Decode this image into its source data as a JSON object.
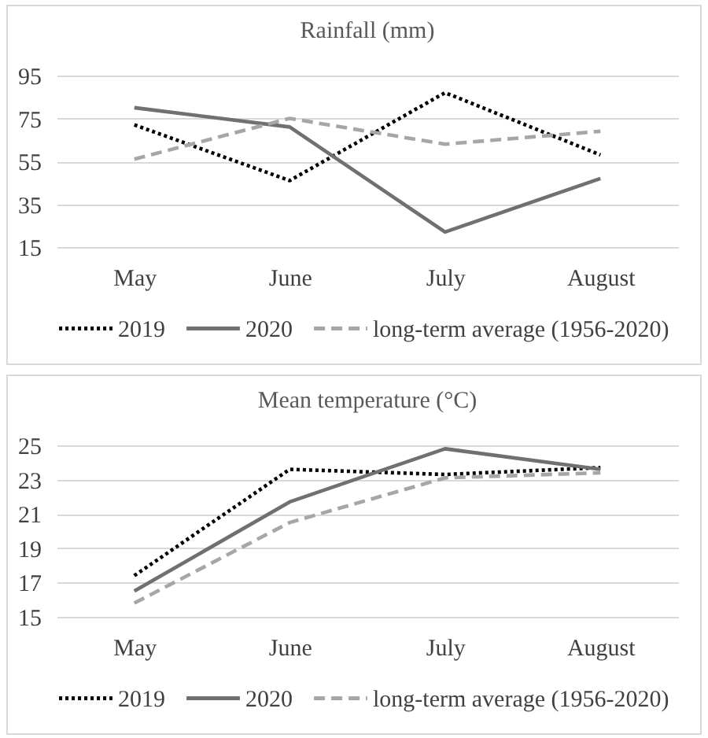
{
  "chart_data": [
    {
      "type": "line",
      "title": "Rainfall (mm)",
      "categories": [
        "May",
        "June",
        "July",
        "August"
      ],
      "series": [
        {
          "name": "2019",
          "color": "#000000",
          "line_style": "dotted",
          "values": [
            72,
            46,
            87,
            58
          ]
        },
        {
          "name": "2020",
          "color": "#707070",
          "line_style": "solid",
          "values": [
            80,
            71,
            22,
            47
          ]
        },
        {
          "name": "long-term average (1956-2020)",
          "color": "#a6a6a6",
          "line_style": "dashed",
          "values": [
            56,
            75,
            63,
            69
          ]
        }
      ],
      "ylim": [
        15,
        95
      ],
      "yticks": [
        15,
        35,
        55,
        75,
        95
      ],
      "grid": "y",
      "legend": "bottom"
    },
    {
      "type": "line",
      "title": "Mean temperature (°C)",
      "categories": [
        "May",
        "June",
        "July",
        "August"
      ],
      "series": [
        {
          "name": "2019",
          "color": "#000000",
          "line_style": "dotted",
          "values": [
            17.4,
            23.6,
            23.3,
            23.7
          ]
        },
        {
          "name": "2020",
          "color": "#707070",
          "line_style": "solid",
          "values": [
            16.5,
            21.7,
            24.8,
            23.6
          ]
        },
        {
          "name": "long-term average (1956-2020)",
          "color": "#a6a6a6",
          "line_style": "dashed",
          "values": [
            15.8,
            20.5,
            23.1,
            23.4
          ]
        }
      ],
      "ylim": [
        15,
        25
      ],
      "yticks": [
        15,
        17,
        19,
        21,
        23,
        25
      ],
      "grid": "y",
      "legend": "bottom"
    }
  ]
}
